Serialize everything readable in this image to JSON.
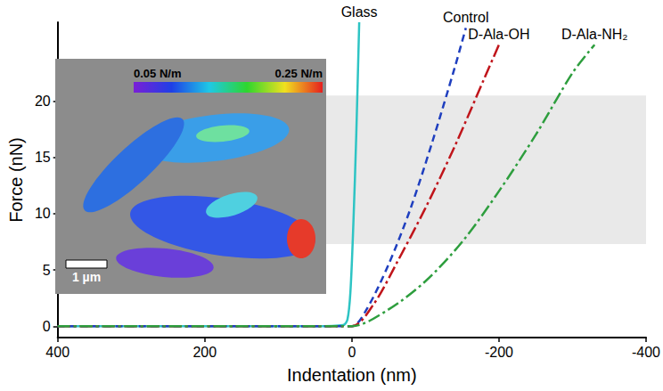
{
  "chart_data": {
    "type": "line",
    "x_label": "Indentation (nm)",
    "y_label": "Force (nN)",
    "xlim": [
      400,
      -400
    ],
    "xticks": [
      400,
      200,
      0,
      -200,
      -400
    ],
    "ylim": [
      -1,
      27
    ],
    "yticks": [
      0,
      5,
      10,
      15,
      20
    ],
    "grid": false,
    "shaded_band": [
      7.3,
      20.5
    ],
    "series": [
      {
        "name": "Glass",
        "color": "#2ec4c4",
        "line_style": "solid",
        "x": [
          400,
          200,
          50,
          12,
          6,
          2,
          -2,
          -6,
          -10
        ],
        "values": [
          0,
          0,
          0,
          0.1,
          0.6,
          3,
          9,
          17,
          27
        ]
      },
      {
        "name": "Control",
        "color": "#1f3fbf",
        "line_style": "dashed",
        "x": [
          400,
          200,
          50,
          0,
          -20,
          -50,
          -80,
          -110,
          -140,
          -155
        ],
        "values": [
          0,
          0,
          0,
          0,
          1.5,
          5.5,
          10.5,
          16.5,
          23,
          26.5
        ]
      },
      {
        "name": "D-Ala-OH",
        "color": "#c0151b",
        "line_style": "dashdot",
        "x": [
          400,
          200,
          50,
          0,
          -30,
          -60,
          -100,
          -140,
          -180,
          -200
        ],
        "values": [
          0,
          0,
          0,
          0,
          2,
          5.5,
          10.5,
          16,
          22,
          25
        ]
      },
      {
        "name": "D-Ala-NH₂",
        "color": "#2e9e3e",
        "line_style": "dashdot",
        "x": [
          400,
          200,
          50,
          0,
          -50,
          -100,
          -150,
          -200,
          -250,
          -300,
          -330
        ],
        "values": [
          0,
          0,
          0,
          0,
          1.5,
          4,
          7.5,
          12,
          17,
          22.5,
          25
        ]
      }
    ],
    "inset": {
      "colorbar": {
        "range": [
          0.05,
          0.25
        ],
        "ticks": [
          {
            "value": 0.05,
            "label": "0.05 N/m"
          },
          {
            "value": 0.25,
            "label": "0.25 N/m"
          }
        ]
      },
      "scale_bar_label": "1 µm"
    }
  }
}
